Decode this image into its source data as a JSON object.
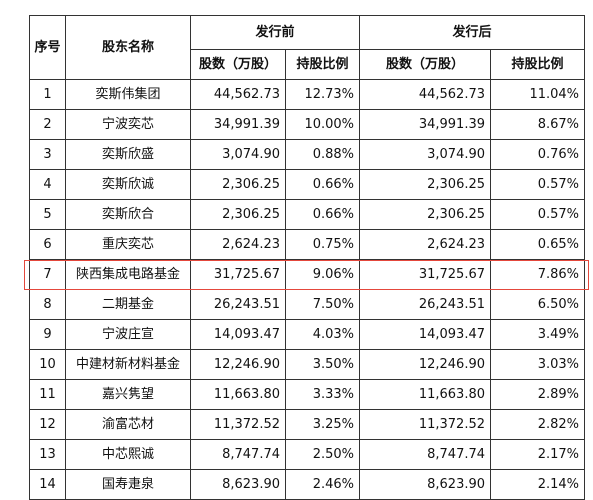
{
  "table": {
    "headers": {
      "seq": "序号",
      "name": "股东名称",
      "before": "发行前",
      "after": "发行后",
      "shares": "股数（万股）",
      "ratio": "持股比例"
    },
    "rows": [
      {
        "seq": "1",
        "name": "奕斯伟集团",
        "shares_before": "44,562.73",
        "ratio_before": "12.73%",
        "shares_after": "44,562.73",
        "ratio_after": "11.04%"
      },
      {
        "seq": "2",
        "name": "宁波奕芯",
        "shares_before": "34,991.39",
        "ratio_before": "10.00%",
        "shares_after": "34,991.39",
        "ratio_after": "8.67%"
      },
      {
        "seq": "3",
        "name": "奕斯欣盛",
        "shares_before": "3,074.90",
        "ratio_before": "0.88%",
        "shares_after": "3,074.90",
        "ratio_after": "0.76%"
      },
      {
        "seq": "4",
        "name": "奕斯欣诚",
        "shares_before": "2,306.25",
        "ratio_before": "0.66%",
        "shares_after": "2,306.25",
        "ratio_after": "0.57%"
      },
      {
        "seq": "5",
        "name": "奕斯欣合",
        "shares_before": "2,306.25",
        "ratio_before": "0.66%",
        "shares_after": "2,306.25",
        "ratio_after": "0.57%"
      },
      {
        "seq": "6",
        "name": "重庆奕芯",
        "shares_before": "2,624.23",
        "ratio_before": "0.75%",
        "shares_after": "2,624.23",
        "ratio_after": "0.65%"
      },
      {
        "seq": "7",
        "name": "陕西集成电路基金",
        "shares_before": "31,725.67",
        "ratio_before": "9.06%",
        "shares_after": "31,725.67",
        "ratio_after": "7.86%",
        "highlighted": true
      },
      {
        "seq": "8",
        "name": "二期基金",
        "shares_before": "26,243.51",
        "ratio_before": "7.50%",
        "shares_after": "26,243.51",
        "ratio_after": "6.50%"
      },
      {
        "seq": "9",
        "name": "宁波庄宣",
        "shares_before": "14,093.47",
        "ratio_before": "4.03%",
        "shares_after": "14,093.47",
        "ratio_after": "3.49%"
      },
      {
        "seq": "10",
        "name": "中建材新材料基金",
        "shares_before": "12,246.90",
        "ratio_before": "3.50%",
        "shares_after": "12,246.90",
        "ratio_after": "3.03%"
      },
      {
        "seq": "11",
        "name": "嘉兴隽望",
        "shares_before": "11,663.80",
        "ratio_before": "3.33%",
        "shares_after": "11,663.80",
        "ratio_after": "2.89%"
      },
      {
        "seq": "12",
        "name": "渝富芯材",
        "shares_before": "11,372.52",
        "ratio_before": "3.25%",
        "shares_after": "11,372.52",
        "ratio_after": "2.82%"
      },
      {
        "seq": "13",
        "name": "中芯熙诚",
        "shares_before": "8,747.74",
        "ratio_before": "2.50%",
        "shares_after": "8,747.74",
        "ratio_after": "2.17%"
      },
      {
        "seq": "14",
        "name": "国寿疌泉",
        "shares_before": "8,623.90",
        "ratio_before": "2.46%",
        "shares_after": "8,623.90",
        "ratio_after": "2.14%"
      }
    ]
  },
  "colors": {
    "highlight_border": "#e4483c",
    "grid": "#333333",
    "text": "#111111"
  }
}
